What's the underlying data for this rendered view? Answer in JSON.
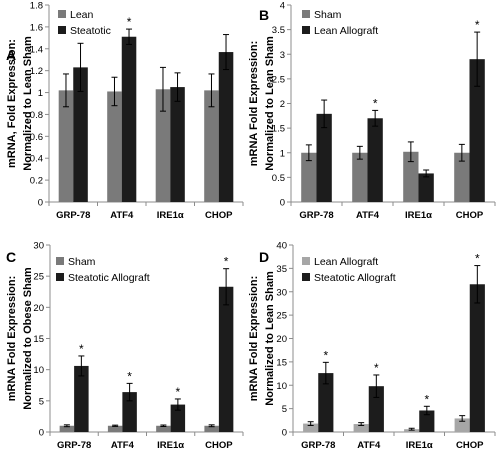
{
  "figure": {
    "panels": [
      "A",
      "B",
      "C",
      "D"
    ]
  },
  "colors": {
    "dark_gray": "#7a7a7a",
    "black": "#1c1c1c",
    "light_gray": "#a6a6a6",
    "axis": "#8c8c8c",
    "text": "#000000"
  },
  "chart_data": [
    {
      "panel": "A",
      "type": "bar",
      "categories": [
        "GRP-78",
        "ATF4",
        "IRE1α",
        "CHOP"
      ],
      "ylabel_lines": [
        "mRNA, Fold Expression:",
        "Normalized to Lean Sham"
      ],
      "ylim": [
        0,
        1.8
      ],
      "yticks": [
        0,
        0.2,
        0.4,
        0.6,
        0.8,
        1,
        1.2,
        1.4,
        1.6,
        1.8
      ],
      "ytick_labels": [
        "0",
        "0.2",
        "0.4",
        "0.6",
        "0.8",
        "1",
        "1.2",
        "1.4",
        "1.6",
        "1.8"
      ],
      "legend_position": "top-left",
      "series": [
        {
          "name": "Lean",
          "color": "#7a7a7a",
          "values": [
            1.02,
            1.01,
            1.03,
            1.02
          ],
          "errors": [
            0.15,
            0.13,
            0.2,
            0.15
          ]
        },
        {
          "name": "Steatotic",
          "color": "#1c1c1c",
          "values": [
            1.23,
            1.51,
            1.05,
            1.37
          ],
          "errors": [
            0.22,
            0.07,
            0.13,
            0.16
          ]
        }
      ],
      "significance": [
        "",
        "*",
        "",
        ""
      ]
    },
    {
      "panel": "B",
      "type": "bar",
      "categories": [
        "GRP-78",
        "ATF4",
        "IRE1α",
        "CHOP"
      ],
      "ylabel_lines": [
        "mRNA Fold Expression:",
        "Normalized to Lean Sham"
      ],
      "ylim": [
        0,
        4
      ],
      "yticks": [
        0,
        0.5,
        1,
        1.5,
        2,
        2.5,
        3,
        3.5,
        4
      ],
      "ytick_labels": [
        "0",
        "0.5",
        "1",
        "1.5",
        "2",
        "2.5",
        "3",
        "3.5",
        "4"
      ],
      "legend_position": "top-left",
      "series": [
        {
          "name": "Sham",
          "color": "#7a7a7a",
          "values": [
            1.0,
            1.0,
            1.02,
            1.0
          ],
          "errors": [
            0.16,
            0.13,
            0.2,
            0.17
          ]
        },
        {
          "name": "Lean Allograft",
          "color": "#1c1c1c",
          "values": [
            1.79,
            1.7,
            0.58,
            2.9
          ],
          "errors": [
            0.28,
            0.16,
            0.07,
            0.55
          ]
        }
      ],
      "significance": [
        "",
        "*",
        "",
        "*"
      ]
    },
    {
      "panel": "C",
      "type": "bar",
      "categories": [
        "GRP-78",
        "ATF4",
        "IRE1α",
        "CHOP"
      ],
      "ylabel_lines": [
        "mRNA Fold Expression:",
        "Normalized to Obese Sham"
      ],
      "ylim": [
        0,
        30
      ],
      "yticks": [
        0,
        5,
        10,
        15,
        20,
        25,
        30
      ],
      "ytick_labels": [
        "0",
        "5",
        "10",
        "15",
        "20",
        "25",
        "30"
      ],
      "legend_position": "top-left",
      "series": [
        {
          "name": "Sham",
          "color": "#7a7a7a",
          "values": [
            1.0,
            1.0,
            1.0,
            1.0
          ],
          "errors": [
            0.15,
            0.1,
            0.12,
            0.15
          ]
        },
        {
          "name": "Steatotic Allograft",
          "color": "#1c1c1c",
          "values": [
            10.6,
            6.4,
            4.4,
            23.3
          ],
          "errors": [
            1.6,
            1.4,
            0.9,
            2.9
          ]
        }
      ],
      "significance": [
        "*",
        "*",
        "*",
        "*"
      ]
    },
    {
      "panel": "D",
      "type": "bar",
      "categories": [
        "GRP-78",
        "ATF4",
        "IRE1α",
        "CHOP"
      ],
      "ylabel_lines": [
        "mRNA Fold Expression:",
        "Normalized to Lean Sham"
      ],
      "ylim": [
        0,
        40
      ],
      "yticks": [
        0,
        5,
        10,
        15,
        20,
        25,
        30,
        35,
        40
      ],
      "ytick_labels": [
        "0",
        "5",
        "10",
        "15",
        "20",
        "25",
        "30",
        "35",
        "40"
      ],
      "legend_position": "top-left",
      "series": [
        {
          "name": "Lean Allograft",
          "color": "#a6a6a6",
          "values": [
            1.8,
            1.7,
            0.6,
            2.9
          ],
          "errors": [
            0.4,
            0.3,
            0.2,
            0.6
          ]
        },
        {
          "name": "Steatotic Allograft",
          "color": "#1c1c1c",
          "values": [
            12.6,
            9.8,
            4.6,
            31.6
          ],
          "errors": [
            2.3,
            2.4,
            0.9,
            4.0
          ]
        }
      ],
      "significance": [
        "*",
        "*",
        "*",
        "*"
      ]
    }
  ]
}
